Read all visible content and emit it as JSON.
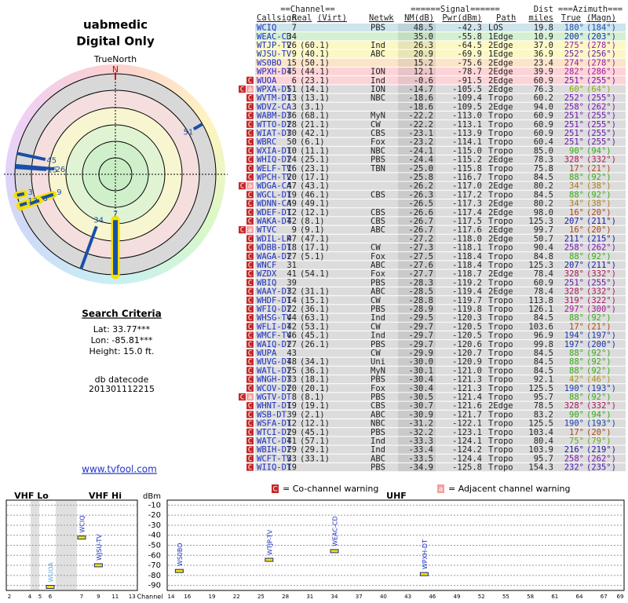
{
  "header": {
    "user": "uabmedic",
    "mode": "Digital Only"
  },
  "compass": {
    "north_caption": "TrueNorth",
    "north": "N"
  },
  "search": {
    "title": "Search Criteria",
    "lat": "Lat: 33.77***",
    "lon": "Lon: -85.81***",
    "height": "Height: 15.0 ft."
  },
  "datecode": {
    "label": "db datecode",
    "value": "201301112215"
  },
  "link": "www.tvfool.com",
  "table": {
    "group_headers": [
      "==Channel==",
      "======Signal======",
      "Dist",
      "===Azimuth==="
    ],
    "columns": [
      "Callsign",
      "Real",
      "(Virt)",
      "Netwk",
      "NM(dB)",
      "Pwr(dBm)",
      "Path",
      "miles",
      "True",
      "(Magn)"
    ],
    "rows": [
      {
        "cells": [
          "WCIQ",
          "7",
          null,
          "PBS",
          "48.5",
          "-42.3",
          "LOS",
          "19.8",
          "180°",
          "(184°)"
        ]
      },
      {
        "cells": [
          "WEAC-CD",
          "34",
          null,
          null,
          "35.0",
          "-55.8",
          "1Edge",
          "10.9",
          "200°",
          "(203°)"
        ]
      },
      {
        "cells": [
          "WTJP-TV",
          "26",
          "(60.1)",
          "Ind",
          "26.3",
          "-64.5",
          "2Edge",
          "37.0",
          "275°",
          "(278°)"
        ]
      },
      {
        "cells": [
          "WJSU-TV",
          "9",
          "(40.1)",
          "ABC",
          "20.9",
          "-69.9",
          "1Edge",
          "36.9",
          "252°",
          "(256°)"
        ]
      },
      {
        "cells": [
          "WS0BO",
          "15",
          "(50.1)",
          null,
          "15.2",
          "-75.6",
          "2Edge",
          "23.4",
          "274°",
          "(278°)"
        ]
      },
      {
        "cells": [
          "WPXH-DT",
          "45",
          "(44.1)",
          "ION",
          "12.1",
          "-78.7",
          "2Edge",
          "39.9",
          "282°",
          "(286°)"
        ]
      },
      {
        "flags": [
          "C"
        ],
        "cells": [
          "WUOA",
          "6",
          "(23.1)",
          "Ind",
          "-0.6",
          "-91.5",
          "2Edge",
          "60.9",
          "251°",
          "(255°)"
        ]
      },
      {
        "flags": [
          "C",
          "a"
        ],
        "cells": [
          "WPXA-DT",
          "51",
          "(14.1)",
          "ION",
          "-14.7",
          "-105.5",
          "2Edge",
          "76.3",
          "60°",
          "(64°)"
        ]
      },
      {
        "flags": [
          "C"
        ],
        "cells": [
          "WVTM-DT",
          "13",
          "(13.1)",
          "NBC",
          "-18.6",
          "-109.4",
          "Tropo",
          "60.2",
          "252°",
          "(255°)"
        ]
      },
      {
        "flags": [
          "C"
        ],
        "cells": [
          "WDVZ-CA",
          "3",
          "(3.1)",
          null,
          "-18.6",
          "-109.5",
          "2Edge",
          "94.0",
          "258°",
          "(262°)"
        ]
      },
      {
        "flags": [
          "C"
        ],
        "cells": [
          "WABM-DT",
          "36",
          "(68.1)",
          "MyN",
          "-22.2",
          "-113.0",
          "Tropo",
          "60.9",
          "251°",
          "(255°)"
        ]
      },
      {
        "flags": [
          "C"
        ],
        "cells": [
          "WTTO-DT",
          "28",
          "(21.1)",
          "CW",
          "-22.2",
          "-113.1",
          "Tropo",
          "60.9",
          "251°",
          "(255°)"
        ]
      },
      {
        "flags": [
          "C"
        ],
        "cells": [
          "WIAT-DT",
          "30",
          "(42.1)",
          "CBS",
          "-23.1",
          "-113.9",
          "Tropo",
          "60.9",
          "251°",
          "(255°)"
        ]
      },
      {
        "flags": [
          "C"
        ],
        "cells": [
          "WBRC",
          "50",
          "(6.1)",
          "Fox",
          "-23.2",
          "-114.1",
          "Tropo",
          "60.4",
          "251°",
          "(255°)"
        ]
      },
      {
        "flags": [
          "C"
        ],
        "cells": [
          "WXIA-DT",
          "10",
          "(11.1)",
          "NBC",
          "-24.1",
          "-115.0",
          "Tropo",
          "85.0",
          "90°",
          "(94°)"
        ]
      },
      {
        "flags": [
          "C"
        ],
        "cells": [
          "WHIQ-DT",
          "24",
          "(25.1)",
          "PBS",
          "-24.4",
          "-115.2",
          "2Edge",
          "78.3",
          "328°",
          "(332°)"
        ]
      },
      {
        "flags": [
          "C"
        ],
        "cells": [
          "WELF-TV",
          "16",
          "(23.1)",
          "TBN",
          "-25.0",
          "-115.8",
          "Tropo",
          "75.8",
          "17°",
          "(21°)"
        ]
      },
      {
        "flags": [
          "C"
        ],
        "cells": [
          "WPCH-TV",
          "20",
          "(17.1)",
          null,
          "-25.8",
          "-116.7",
          "Tropo",
          "84.5",
          "88°",
          "(92°)"
        ]
      },
      {
        "flags": [
          "C",
          "a"
        ],
        "cells": [
          "WDGA-CA",
          "47",
          "(43.1)",
          null,
          "-26.2",
          "-117.0",
          "2Edge",
          "80.2",
          "34°",
          "(38°)"
        ]
      },
      {
        "flags": [
          "C"
        ],
        "cells": [
          "WGCL-DT",
          "19",
          "(46.1)",
          "CBS",
          "-26.3",
          "-117.2",
          "Tropo",
          "84.5",
          "88°",
          "(92°)"
        ]
      },
      {
        "flags": [
          "C"
        ],
        "cells": [
          "WDNN-CA",
          "49",
          "(49.1)",
          null,
          "-26.5",
          "-117.3",
          "2Edge",
          "80.2",
          "34°",
          "(38°)"
        ]
      },
      {
        "flags": [
          "C"
        ],
        "cells": [
          "WDEF-DT",
          "12",
          "(12.1)",
          "CBS",
          "-26.6",
          "-117.4",
          "2Edge",
          "98.0",
          "16°",
          "(20°)"
        ]
      },
      {
        "flags": [
          "C"
        ],
        "cells": [
          "WAKA-DT",
          "42",
          "(8.1)",
          "CBS",
          "-26.7",
          "-117.5",
          "Tropo",
          "125.3",
          "207°",
          "(211°)"
        ]
      },
      {
        "flags": [
          "C",
          "a"
        ],
        "cells": [
          "WTVC",
          "9",
          "(9.1)",
          "ABC",
          "-26.7",
          "-117.6",
          "2Edge",
          "99.7",
          "16°",
          "(20°)"
        ]
      },
      {
        "flags": [
          "C"
        ],
        "cells": [
          "WDIL-LP",
          "47",
          "(47.1)",
          null,
          "-27.2",
          "-118.0",
          "2Edge",
          "50.7",
          "211°",
          "(215°)"
        ]
      },
      {
        "flags": [
          "C"
        ],
        "cells": [
          "WDBB-DT",
          "18",
          "(17.1)",
          "CW",
          "-27.3",
          "-118.1",
          "Tropo",
          "90.4",
          "258°",
          "(262°)"
        ]
      },
      {
        "flags": [
          "C"
        ],
        "cells": [
          "WAGA-DT",
          "27",
          "(5.1)",
          "Fox",
          "-27.5",
          "-118.4",
          "Tropo",
          "84.8",
          "88°",
          "(92°)"
        ]
      },
      {
        "flags": [
          "C"
        ],
        "cells": [
          "WNCF",
          "31",
          null,
          "ABC",
          "-27.6",
          "-118.4",
          "Tropo",
          "125.3",
          "207°",
          "(211°)"
        ]
      },
      {
        "flags": [
          "C"
        ],
        "cells": [
          "WZDX",
          "41",
          "(54.1)",
          "Fox",
          "-27.7",
          "-118.7",
          "2Edge",
          "78.4",
          "328°",
          "(332°)"
        ]
      },
      {
        "flags": [
          "C"
        ],
        "cells": [
          "WBIQ",
          "39",
          null,
          "PBS",
          "-28.3",
          "-119.2",
          "Tropo",
          "60.9",
          "251°",
          "(255°)"
        ]
      },
      {
        "flags": [
          "C"
        ],
        "cells": [
          "WAAY-DT",
          "32",
          "(31.1)",
          "ABC",
          "-28.5",
          "-119.4",
          "2Edge",
          "78.4",
          "328°",
          "(332°)"
        ]
      },
      {
        "flags": [
          "C"
        ],
        "cells": [
          "WHDF-DT",
          "14",
          "(15.1)",
          "CW",
          "-28.8",
          "-119.7",
          "Tropo",
          "113.8",
          "319°",
          "(322°)"
        ]
      },
      {
        "flags": [
          "C"
        ],
        "cells": [
          "WFIQ-DT",
          "22",
          "(36.1)",
          "PBS",
          "-28.9",
          "-119.8",
          "Tropo",
          "126.1",
          "297°",
          "(300°)"
        ]
      },
      {
        "flags": [
          "C"
        ],
        "cells": [
          "WHSG-TV",
          "44",
          "(63.1)",
          "Ind",
          "-29.5",
          "-120.3",
          "Tropo",
          "84.5",
          "88°",
          "(92°)"
        ]
      },
      {
        "flags": [
          "C"
        ],
        "cells": [
          "WFLI-DT",
          "42",
          "(53.1)",
          "CW",
          "-29.7",
          "-120.5",
          "Tropo",
          "103.6",
          "17°",
          "(21°)"
        ]
      },
      {
        "flags": [
          "C"
        ],
        "cells": [
          "WMCF-TV",
          "46",
          "(45.1)",
          "Ind",
          "-29.7",
          "-120.5",
          "Tropo",
          "96.9",
          "194°",
          "(197°)"
        ]
      },
      {
        "flags": [
          "C"
        ],
        "cells": [
          "WAIQ-DT",
          "27",
          "(26.1)",
          "PBS",
          "-29.7",
          "-120.6",
          "Tropo",
          "99.8",
          "197°",
          "(200°)"
        ]
      },
      {
        "flags": [
          "C"
        ],
        "cells": [
          "WUPA",
          "43",
          null,
          "CW",
          "-29.9",
          "-120.7",
          "Tropo",
          "84.5",
          "88°",
          "(92°)"
        ]
      },
      {
        "flags": [
          "C"
        ],
        "cells": [
          "WUVG-DT",
          "48",
          "(34.1)",
          "Uni",
          "-30.0",
          "-120.9",
          "Tropo",
          "84.5",
          "88°",
          "(92°)"
        ]
      },
      {
        "flags": [
          "C"
        ],
        "cells": [
          "WATL-DT",
          "25",
          "(36.1)",
          "MyN",
          "-30.1",
          "-121.0",
          "Tropo",
          "84.5",
          "88°",
          "(92°)"
        ]
      },
      {
        "flags": [
          "C"
        ],
        "cells": [
          "WNGH-DT",
          "33",
          "(18.1)",
          "PBS",
          "-30.4",
          "-121.3",
          "Tropo",
          "92.1",
          "42°",
          "(46°)"
        ]
      },
      {
        "flags": [
          "C"
        ],
        "cells": [
          "WCOV-DT",
          "20",
          "(20.1)",
          "Fox",
          "-30.4",
          "-121.3",
          "Tropo",
          "125.5",
          "190°",
          "(193°)"
        ]
      },
      {
        "flags": [
          "C",
          "a"
        ],
        "cells": [
          "WGTV-DT",
          "8",
          "(8.1)",
          "PBS",
          "-30.5",
          "-121.4",
          "Tropo",
          "95.7",
          "88°",
          "(92°)"
        ]
      },
      {
        "flags": [
          "C"
        ],
        "cells": [
          "WHNT-DT",
          "19",
          "(19.1)",
          "CBS",
          "-30.7",
          "-121.6",
          "2Edge",
          "78.5",
          "328°",
          "(332°)"
        ]
      },
      {
        "flags": [
          "C"
        ],
        "cells": [
          "WSB-DT",
          "39",
          "(2.1)",
          "ABC",
          "-30.9",
          "-121.7",
          "Tropo",
          "83.2",
          "90°",
          "(94°)"
        ]
      },
      {
        "flags": [
          "C"
        ],
        "cells": [
          "WSFA-DT",
          "12",
          "(12.1)",
          "NBC",
          "-31.2",
          "-122.1",
          "Tropo",
          "125.5",
          "190°",
          "(193°)"
        ]
      },
      {
        "flags": [
          "C"
        ],
        "cells": [
          "WTCI-DT",
          "29",
          "(45.1)",
          "PBS",
          "-32.2",
          "-123.1",
          "Tropo",
          "103.4",
          "17°",
          "(20°)"
        ]
      },
      {
        "flags": [
          "C"
        ],
        "cells": [
          "WATC-DT",
          "41",
          "(57.1)",
          "Ind",
          "-33.3",
          "-124.1",
          "Tropo",
          "80.4",
          "75°",
          "(79°)"
        ]
      },
      {
        "flags": [
          "C"
        ],
        "cells": [
          "WBIH-DT",
          "29",
          "(29.1)",
          "Ind",
          "-33.4",
          "-124.2",
          "Tropo",
          "103.9",
          "216°",
          "(219°)"
        ]
      },
      {
        "flags": [
          "C"
        ],
        "cells": [
          "WCFT-TV",
          "33",
          "(33.1)",
          "ABC",
          "-33.5",
          "-124.4",
          "Tropo",
          "95.7",
          "258°",
          "(262°)"
        ]
      },
      {
        "flags": [
          "C"
        ],
        "cells": [
          "WIIQ-DT",
          "19",
          null,
          "PBS",
          "-34.9",
          "-125.8",
          "Tropo",
          "154.3",
          "232°",
          "(235°)"
        ]
      }
    ]
  },
  "spectrum": {
    "vhf_lo": "VHF Lo",
    "vhf_hi": "VHF Hi",
    "uhf": "UHF",
    "y_label": "dBm",
    "x_label": "Channel",
    "ylim": [
      -95,
      -5
    ],
    "yticks": [
      -10,
      -20,
      -30,
      -40,
      -50,
      -60,
      -70,
      -80,
      -90
    ],
    "vhf_xticks": [
      2,
      4,
      5,
      6,
      7,
      9,
      11,
      13
    ],
    "uhf_xticks": [
      14,
      16,
      19,
      22,
      25,
      28,
      31,
      34,
      37,
      40,
      43,
      46,
      49,
      52,
      55,
      58,
      61,
      64,
      67,
      69
    ],
    "legend": [
      {
        "icon": "C",
        "text": "= Co-channel warning"
      },
      {
        "icon": "a",
        "text": "= Adjacent channel warning"
      }
    ]
  }
}
